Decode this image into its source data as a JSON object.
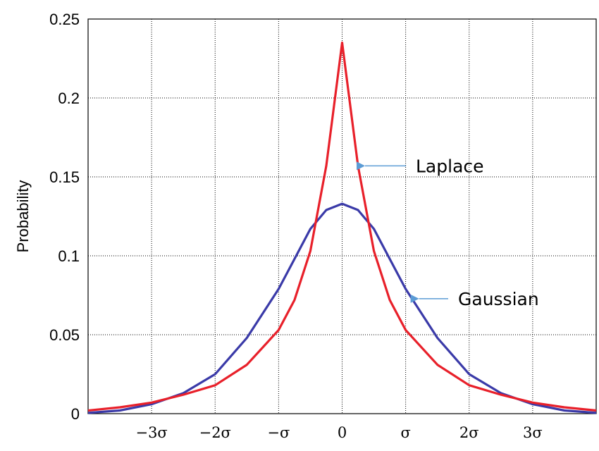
{
  "chart_data": {
    "type": "line",
    "ylabel": "Probability",
    "xlabel": "",
    "ylim": [
      0,
      0.25
    ],
    "xlim": [
      -4,
      4
    ],
    "grid": true,
    "yticks": [
      {
        "value": 0,
        "label": "0"
      },
      {
        "value": 0.05,
        "label": "0.05"
      },
      {
        "value": 0.1,
        "label": "0.1"
      },
      {
        "value": 0.15,
        "label": "0.15"
      },
      {
        "value": 0.2,
        "label": "0.2"
      },
      {
        "value": 0.25,
        "label": "0.25"
      }
    ],
    "xticks": [
      {
        "value": -3,
        "label": "−3σ"
      },
      {
        "value": -2,
        "label": "−2σ"
      },
      {
        "value": -1,
        "label": "−σ"
      },
      {
        "value": 0,
        "label": "0"
      },
      {
        "value": 1,
        "label": "σ"
      },
      {
        "value": 2,
        "label": "2σ"
      },
      {
        "value": 3,
        "label": "3σ"
      }
    ],
    "series": [
      {
        "name": "Laplace",
        "color": "#e8202a",
        "x": [
          -4,
          -3.5,
          -3,
          -2.5,
          -2,
          -1.5,
          -1,
          -0.75,
          -0.5,
          -0.25,
          0,
          0.25,
          0.5,
          0.75,
          1,
          1.5,
          2,
          2.5,
          3,
          3.5,
          4
        ],
        "y": [
          0.002,
          0.004,
          0.007,
          0.012,
          0.018,
          0.031,
          0.053,
          0.072,
          0.103,
          0.157,
          0.235,
          0.157,
          0.103,
          0.072,
          0.053,
          0.031,
          0.018,
          0.012,
          0.007,
          0.004,
          0.002
        ]
      },
      {
        "name": "Gaussian",
        "color": "#3a3aa8",
        "x": [
          -4,
          -3.5,
          -3,
          -2.5,
          -2,
          -1.5,
          -1,
          -0.75,
          -0.5,
          -0.25,
          0,
          0.25,
          0.5,
          0.75,
          1,
          1.5,
          2,
          2.5,
          3,
          3.5,
          4
        ],
        "y": [
          0.0005,
          0.002,
          0.006,
          0.013,
          0.025,
          0.048,
          0.079,
          0.098,
          0.117,
          0.129,
          0.133,
          0.129,
          0.117,
          0.098,
          0.079,
          0.048,
          0.025,
          0.013,
          0.006,
          0.002,
          0.0005
        ]
      }
    ],
    "annotations": [
      {
        "text": "Laplace",
        "series": "Laplace",
        "at_x": 0.25,
        "arrow_color": "#5b9bd5"
      },
      {
        "text": "Gaussian",
        "series": "Gaussian",
        "at_x": 1.1,
        "arrow_color": "#5b9bd5"
      }
    ]
  }
}
